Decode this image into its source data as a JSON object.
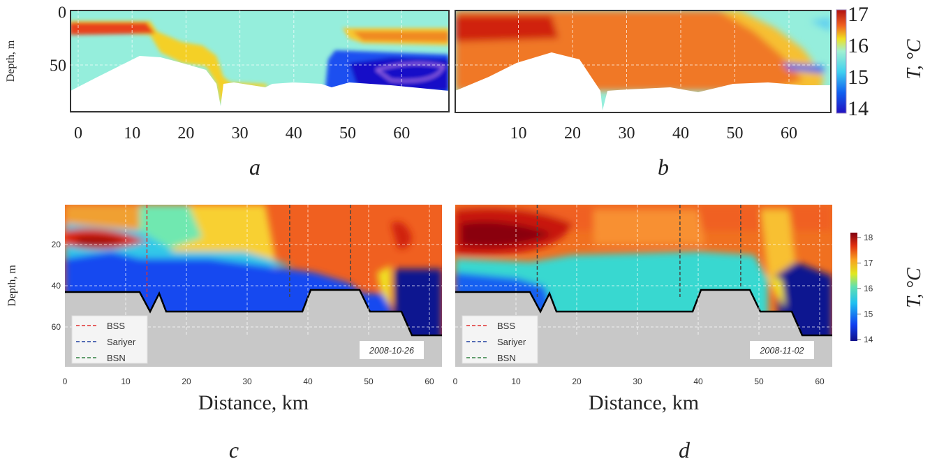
{
  "chart_data": [
    {
      "panel": "a",
      "type": "heatmap",
      "ylabel": "Depth, m",
      "xlabel": "",
      "xticks": [
        "0",
        "10",
        "20",
        "30",
        "40",
        "50",
        "60"
      ],
      "yticks": [
        "0",
        "50"
      ],
      "xlim": [
        -1.5,
        69
      ],
      "ylim": [
        0,
        95
      ],
      "colorbar": {
        "label": "T, °C",
        "ticks": [
          "17",
          "16",
          "15",
          "14"
        ],
        "range": [
          14,
          17
        ]
      },
      "grid": true
    },
    {
      "panel": "b",
      "type": "heatmap",
      "xticks": [
        "10",
        "20",
        "30",
        "40",
        "50",
        "60"
      ],
      "xlim": [
        -1.5,
        69
      ],
      "ylim": [
        0,
        95
      ],
      "grid": true
    },
    {
      "panel": "c",
      "type": "heatmap",
      "ylabel": "Depth, m",
      "xlabel": "Distance, km",
      "xticks": [
        "0",
        "10",
        "20",
        "30",
        "40",
        "50",
        "60"
      ],
      "yticks": [
        "20",
        "40",
        "60"
      ],
      "xlim": [
        0,
        64
      ],
      "ylim": [
        0,
        78
      ],
      "date": "2008-10-26",
      "legend": {
        "position": "bottom-left",
        "entries": [
          {
            "label": "BSS",
            "color": "#e03030",
            "x": 13.5
          },
          {
            "label": "Sariyer",
            "color": "#2040a0",
            "x": 37
          },
          {
            "label": "BSN",
            "color": "#308040",
            "x": 47
          }
        ]
      },
      "grid": true
    },
    {
      "panel": "d",
      "type": "heatmap",
      "xlabel": "Distance, km",
      "xticks": [
        "0",
        "10",
        "20",
        "30",
        "40",
        "50",
        "60"
      ],
      "xlim": [
        0,
        64
      ],
      "ylim": [
        0,
        78
      ],
      "date": "2008-11-02",
      "legend": {
        "position": "bottom-left",
        "entries": [
          {
            "label": "BSS",
            "color": "#e03030",
            "x": 13.5
          },
          {
            "label": "Sariyer",
            "color": "#2040a0",
            "x": 37
          },
          {
            "label": "BSN",
            "color": "#308040",
            "x": 47
          }
        ]
      },
      "colorbar": {
        "label": "T, °C",
        "ticks": [
          "18",
          "17",
          "16",
          "15",
          "14"
        ],
        "range": [
          14,
          18
        ]
      },
      "grid": true
    }
  ],
  "panel_letters": [
    "a",
    "b",
    "c",
    "d"
  ]
}
